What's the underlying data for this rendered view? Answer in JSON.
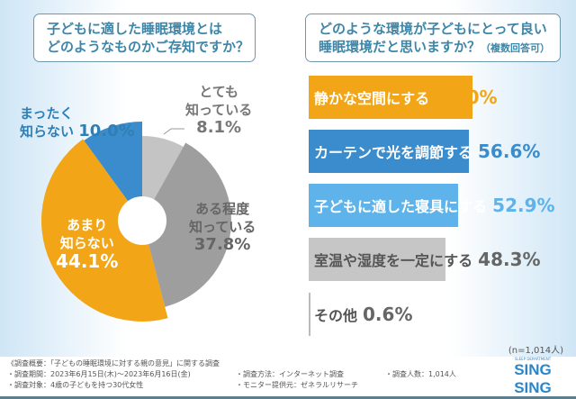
{
  "left": {
    "title_line1": "子どもに適した睡眠環境とは",
    "title_line2": "どのようなものかご存知ですか？"
  },
  "right": {
    "title_line1": "どのような環境が子どもにとって良い",
    "title_line2": "睡眠環境だと思いますか？",
    "title_note": "（複数回答可）"
  },
  "chart_data": [
    {
      "type": "pie",
      "donut": true,
      "start": "top",
      "direction": "clockwise",
      "slices": [
        {
          "label_line1": "とても",
          "label_line2": "知っている",
          "value": 8.1,
          "display": "8.1%",
          "color": "#c4c4c4"
        },
        {
          "label_line1": "ある程度",
          "label_line2": "知っている",
          "value": 37.8,
          "display": "37.8%",
          "color": "#9e9e9e"
        },
        {
          "label_line1": "あまり",
          "label_line2": "知らない",
          "value": 44.1,
          "display": "44.1%",
          "color": "#f2a516"
        },
        {
          "label_line1": "まったく",
          "label_line2": "知らない",
          "value": 10.0,
          "display": "10.0%",
          "color": "#3a8ccc"
        }
      ]
    },
    {
      "type": "bar",
      "orientation": "horizontal",
      "unit": "%",
      "bars": [
        {
          "label": "静かな空間にする",
          "value": 58.0,
          "display": "58.0%",
          "color": "#f2a516"
        },
        {
          "label": "カーテンで光を調節する",
          "value": 56.6,
          "display": "56.6%",
          "color": "#3a8ccc"
        },
        {
          "label": "子どもに適した寝具にする",
          "value": 52.9,
          "display": "52.9%",
          "color": "#5db3ea"
        },
        {
          "label": "室温や湿度を一定にする",
          "value": 48.3,
          "display": "48.3%",
          "color": "#c6c6c6"
        },
        {
          "label": "その他",
          "value": 0.6,
          "display": "0.6%",
          "color": "#bbbbbb"
        }
      ],
      "note": "(n=1,014人)"
    }
  ],
  "footer": {
    "summary": "《調査概要：「子どもの睡眠環境に対する親の意見」に関する調査",
    "period": "・調査期間：2023年6月15日(木)～2023年6月16日(金)",
    "target": "・調査対象：4歳の子どもを持つ30代女性",
    "method": "・調査方法：インターネット調査",
    "provider": "・モニター提供元：ゼネラルリサーチ",
    "count": "・調査人数：1,014人",
    "logo_top": "SLEEP DEPARTMENT",
    "logo": "SING SING"
  }
}
